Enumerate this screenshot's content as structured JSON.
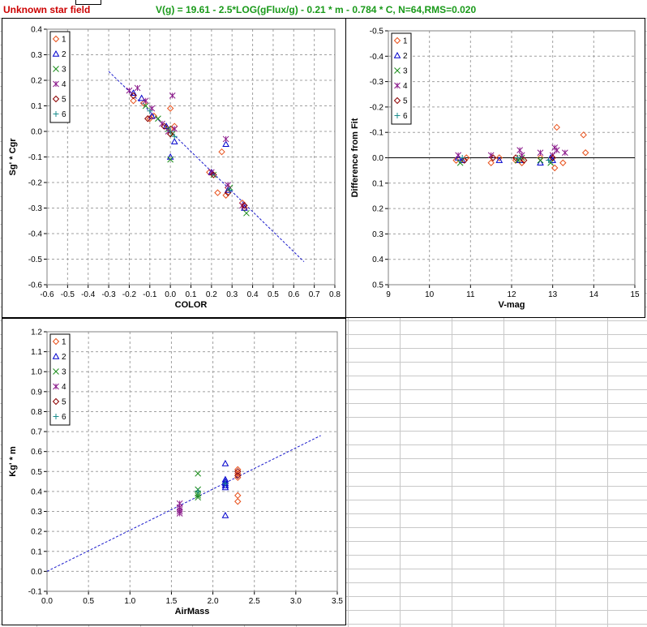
{
  "sheet": {
    "title": "Unknown star field",
    "formula": "V(g) = 19.61 - 2.5*LOG(gFlux/g) - 0.21 * m - 0.784 * C, N=64,RMS=0.020"
  },
  "chart_data": [
    {
      "id": "color",
      "type": "scatter",
      "xlabel": "COLOR",
      "ylabel": "Sg' * Cgr",
      "xlim": [
        -0.6,
        0.8
      ],
      "ylim": [
        -0.6,
        0.4
      ],
      "xticks": [
        "-0.6",
        "-0.5",
        "-0.4",
        "-0.3",
        "-0.2",
        "-0.1",
        "0.0",
        "0.1",
        "0.2",
        "0.3",
        "0.4",
        "0.5",
        "0.6",
        "0.7",
        "0.8"
      ],
      "yticks": [
        "-0.6",
        "-0.5",
        "-0.4",
        "-0.3",
        "-0.2",
        "-0.1",
        "0.0",
        "0.1",
        "0.2",
        "0.3",
        "0.4"
      ],
      "grid": "dashed",
      "legend_position": "top-left",
      "fit_line": {
        "x": [
          -0.3,
          0.65
        ],
        "y": [
          0.235,
          -0.51
        ]
      },
      "series": [
        {
          "name": "1",
          "marker": "diamond",
          "color": "#e8501a",
          "points": [
            [
              -0.18,
              0.12
            ],
            [
              -0.13,
              0.11
            ],
            [
              -0.1,
              0.05
            ],
            [
              -0.08,
              0.06
            ],
            [
              0.0,
              0.09
            ],
            [
              0.0,
              0.01
            ],
            [
              0.02,
              0.02
            ],
            [
              0.19,
              -0.16
            ],
            [
              0.23,
              -0.24
            ],
            [
              0.25,
              -0.08
            ],
            [
              0.27,
              -0.25
            ],
            [
              0.28,
              -0.22
            ],
            [
              0.35,
              -0.28
            ],
            [
              0.36,
              -0.3
            ]
          ]
        },
        {
          "name": "2",
          "marker": "triangle",
          "color": "#0000cc",
          "points": [
            [
              -0.18,
              0.15
            ],
            [
              -0.14,
              0.13
            ],
            [
              -0.09,
              0.06
            ],
            [
              -0.02,
              0.02
            ],
            [
              0.0,
              -0.1
            ],
            [
              0.02,
              -0.04
            ],
            [
              0.2,
              -0.16
            ],
            [
              0.27,
              -0.05
            ],
            [
              0.28,
              -0.23
            ],
            [
              0.36,
              -0.3
            ]
          ]
        },
        {
          "name": "3",
          "marker": "x",
          "color": "#1a8c1a",
          "points": [
            [
              -0.12,
              0.1
            ],
            [
              -0.06,
              0.05
            ],
            [
              -0.01,
              0.01
            ],
            [
              0.0,
              -0.11
            ],
            [
              0.01,
              -0.01
            ],
            [
              0.21,
              -0.17
            ],
            [
              0.29,
              -0.22
            ],
            [
              0.37,
              -0.32
            ]
          ]
        },
        {
          "name": "4",
          "marker": "asterisk",
          "color": "#8b1a8b",
          "points": [
            [
              -0.2,
              0.16
            ],
            [
              -0.16,
              0.17
            ],
            [
              -0.12,
              0.12
            ],
            [
              -0.09,
              0.09
            ],
            [
              -0.04,
              0.03
            ],
            [
              -0.01,
              0.0
            ],
            [
              0.01,
              0.14
            ],
            [
              0.02,
              0.01
            ],
            [
              0.2,
              -0.16
            ],
            [
              0.27,
              -0.03
            ],
            [
              0.28,
              -0.21
            ],
            [
              0.35,
              -0.29
            ]
          ]
        },
        {
          "name": "5",
          "marker": "diamond",
          "color": "#8b0000",
          "points": [
            [
              -0.18,
              0.14
            ],
            [
              -0.11,
              0.05
            ],
            [
              -0.03,
              0.02
            ],
            [
              0.0,
              -0.01
            ],
            [
              0.21,
              -0.17
            ],
            [
              0.28,
              -0.24
            ],
            [
              0.36,
              -0.29
            ]
          ]
        },
        {
          "name": "6",
          "marker": "plus",
          "color": "#1a8c8c",
          "points": [
            [
              -0.1,
              0.08
            ],
            [
              0.0,
              0.0
            ],
            [
              0.02,
              -0.02
            ],
            [
              0.29,
              -0.23
            ]
          ]
        }
      ]
    },
    {
      "id": "residual",
      "type": "scatter",
      "xlabel": "V-mag",
      "ylabel": "Difference from Fit",
      "xlim": [
        9,
        15
      ],
      "ylim": [
        -0.5,
        0.5
      ],
      "y_inverted": true,
      "xticks": [
        "9",
        "10",
        "11",
        "12",
        "13",
        "14",
        "15"
      ],
      "yticks": [
        "-0.5",
        "-0.4",
        "-0.3",
        "-0.2",
        "-0.1",
        "0.0",
        "0.1",
        "0.2",
        "0.3",
        "0.4",
        "0.5"
      ],
      "grid": "dashed",
      "legend_position": "top-left",
      "zero_line": true,
      "series": [
        {
          "name": "1",
          "marker": "diamond",
          "color": "#e8501a",
          "points": [
            [
              10.65,
              0.01
            ],
            [
              10.9,
              0.0
            ],
            [
              11.5,
              0.02
            ],
            [
              11.7,
              0.0
            ],
            [
              12.1,
              0.01
            ],
            [
              12.25,
              0.02
            ],
            [
              12.7,
              0.0
            ],
            [
              13.05,
              0.04
            ],
            [
              13.1,
              -0.12
            ],
            [
              13.25,
              0.02
            ],
            [
              13.75,
              -0.09
            ],
            [
              13.8,
              -0.02
            ]
          ]
        },
        {
          "name": "2",
          "marker": "triangle",
          "color": "#0000cc",
          "points": [
            [
              10.7,
              0.0
            ],
            [
              10.8,
              0.01
            ],
            [
              11.7,
              0.01
            ],
            [
              12.2,
              0.01
            ],
            [
              12.7,
              0.02
            ],
            [
              12.95,
              0.0
            ],
            [
              13.0,
              0.01
            ]
          ]
        },
        {
          "name": "3",
          "marker": "x",
          "color": "#1a8c1a",
          "points": [
            [
              10.75,
              0.02
            ],
            [
              12.15,
              0.01
            ],
            [
              12.25,
              0.0
            ],
            [
              12.7,
              0.01
            ],
            [
              12.95,
              0.02
            ]
          ]
        },
        {
          "name": "4",
          "marker": "asterisk",
          "color": "#8b1a8b",
          "points": [
            [
              10.7,
              -0.01
            ],
            [
              11.5,
              -0.01
            ],
            [
              12.2,
              -0.03
            ],
            [
              12.25,
              -0.01
            ],
            [
              12.7,
              -0.02
            ],
            [
              13.0,
              -0.01
            ],
            [
              13.05,
              -0.04
            ],
            [
              13.1,
              -0.03
            ],
            [
              13.3,
              -0.02
            ]
          ]
        },
        {
          "name": "5",
          "marker": "diamond",
          "color": "#8b0000",
          "points": [
            [
              10.85,
              0.01
            ],
            [
              11.55,
              0.0
            ],
            [
              12.1,
              0.0
            ],
            [
              12.3,
              0.01
            ],
            [
              13.0,
              0.0
            ]
          ]
        },
        {
          "name": "6",
          "marker": "plus",
          "color": "#1a8c8c",
          "points": [
            [
              10.8,
              0.0
            ],
            [
              12.15,
              0.0
            ],
            [
              12.9,
              0.01
            ]
          ]
        }
      ]
    },
    {
      "id": "airmass",
      "type": "scatter",
      "xlabel": "AirMass",
      "ylabel": "Kg' * m",
      "xlim": [
        0,
        3.5
      ],
      "ylim": [
        -0.1,
        1.2
      ],
      "xticks": [
        "0.0",
        "0.5",
        "1.0",
        "1.5",
        "2.0",
        "2.5",
        "3.0",
        "3.5"
      ],
      "yticks": [
        "-0.1",
        "0.0",
        "0.1",
        "0.2",
        "0.3",
        "0.4",
        "0.5",
        "0.6",
        "0.7",
        "0.8",
        "0.9",
        "1.0",
        "1.1",
        "1.2"
      ],
      "grid": "dashed",
      "legend_position": "top-left",
      "fit_line": {
        "x": [
          0.0,
          3.3
        ],
        "y": [
          0.0,
          0.68
        ]
      },
      "series": [
        {
          "name": "1",
          "marker": "diamond",
          "color": "#e8501a",
          "points": [
            [
              2.3,
              0.51
            ],
            [
              2.3,
              0.49
            ],
            [
              2.3,
              0.47
            ],
            [
              2.3,
              0.38
            ],
            [
              2.3,
              0.35
            ]
          ]
        },
        {
          "name": "2",
          "marker": "triangle",
          "color": "#0000cc",
          "points": [
            [
              2.15,
              0.54
            ],
            [
              2.15,
              0.46
            ],
            [
              2.15,
              0.45
            ],
            [
              2.15,
              0.44
            ],
            [
              2.15,
              0.43
            ],
            [
              2.15,
              0.42
            ],
            [
              2.15,
              0.28
            ]
          ]
        },
        {
          "name": "3",
          "marker": "x",
          "color": "#1a8c1a",
          "points": [
            [
              1.82,
              0.49
            ],
            [
              1.82,
              0.41
            ],
            [
              1.82,
              0.39
            ],
            [
              1.82,
              0.38
            ],
            [
              1.82,
              0.37
            ]
          ]
        },
        {
          "name": "4",
          "marker": "asterisk",
          "color": "#8b1a8b",
          "points": [
            [
              1.6,
              0.34
            ],
            [
              1.6,
              0.32
            ],
            [
              1.6,
              0.31
            ],
            [
              1.6,
              0.3
            ],
            [
              1.6,
              0.29
            ]
          ]
        },
        {
          "name": "5",
          "marker": "diamond",
          "color": "#8b0000",
          "points": [
            [
              2.3,
              0.5
            ],
            [
              2.3,
              0.48
            ]
          ]
        },
        {
          "name": "6",
          "marker": "plus",
          "color": "#1a8c8c",
          "points": [
            [
              1.82,
              0.4
            ],
            [
              2.15,
              0.44
            ]
          ]
        }
      ]
    }
  ]
}
